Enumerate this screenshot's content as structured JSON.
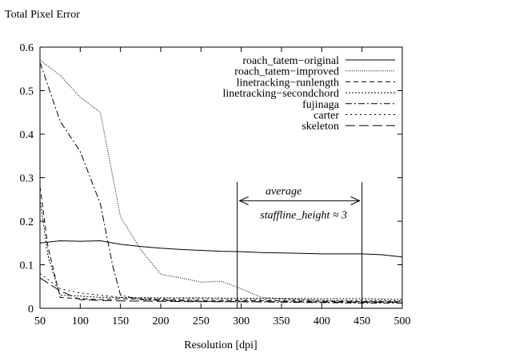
{
  "chart_data": {
    "type": "line",
    "title": "",
    "ylabel": "Total Pixel Error",
    "xlabel": "Resolution [dpi]",
    "xlim": [
      50,
      500
    ],
    "ylim": [
      0,
      0.6
    ],
    "xticks": [
      50,
      100,
      150,
      200,
      250,
      300,
      350,
      400,
      450,
      500
    ],
    "yticks": [
      0,
      0.1,
      0.2,
      0.3,
      0.4,
      0.5,
      0.6
    ],
    "grid": false,
    "legend_position": "top-right",
    "series": [
      {
        "name": "roach_tatem−original",
        "dash": "solid",
        "x": [
          50,
          75,
          100,
          125,
          150,
          175,
          200,
          225,
          250,
          275,
          300,
          325,
          350,
          375,
          400,
          425,
          450,
          475,
          500
        ],
        "y": [
          0.15,
          0.155,
          0.154,
          0.155,
          0.147,
          0.142,
          0.138,
          0.135,
          0.133,
          0.131,
          0.13,
          0.128,
          0.127,
          0.126,
          0.125,
          0.125,
          0.125,
          0.123,
          0.118
        ]
      },
      {
        "name": "roach_tatem−improved",
        "dash": "dotted",
        "x": [
          50,
          75,
          100,
          125,
          150,
          175,
          200,
          225,
          250,
          275,
          300,
          325,
          350,
          375,
          400,
          425,
          450,
          475,
          500
        ],
        "y": [
          0.57,
          0.535,
          0.485,
          0.45,
          0.21,
          0.135,
          0.078,
          0.07,
          0.06,
          0.062,
          0.045,
          0.025,
          0.022,
          0.02,
          0.018,
          0.017,
          0.016,
          0.016,
          0.015
        ]
      },
      {
        "name": "linetracking−runlength",
        "dash": "dashed",
        "x": [
          50,
          60,
          75,
          100,
          125,
          150,
          200,
          250,
          300,
          350,
          400,
          450,
          500
        ],
        "y": [
          0.28,
          0.14,
          0.025,
          0.022,
          0.02,
          0.022,
          0.02,
          0.018,
          0.018,
          0.017,
          0.016,
          0.015,
          0.015
        ]
      },
      {
        "name": "linetracking−secondchord",
        "dash": "densedot",
        "x": [
          50,
          60,
          75,
          100,
          125,
          150,
          200,
          250,
          300,
          350,
          400,
          450,
          500
        ],
        "y": [
          0.25,
          0.12,
          0.03,
          0.028,
          0.025,
          0.025,
          0.024,
          0.024,
          0.023,
          0.023,
          0.022,
          0.022,
          0.02
        ]
      },
      {
        "name": "fujinaga",
        "dash": "dashdot",
        "x": [
          50,
          75,
          100,
          125,
          140,
          150,
          175,
          200,
          250,
          300,
          350,
          400,
          450,
          500
        ],
        "y": [
          0.565,
          0.43,
          0.36,
          0.24,
          0.1,
          0.03,
          0.02,
          0.018,
          0.016,
          0.015,
          0.014,
          0.013,
          0.012,
          0.012
        ]
      },
      {
        "name": "carter",
        "dash": "sparsedot",
        "x": [
          50,
          75,
          100,
          125,
          150,
          200,
          250,
          300,
          350,
          400,
          450,
          500
        ],
        "y": [
          0.08,
          0.045,
          0.035,
          0.03,
          0.025,
          0.022,
          0.022,
          0.02,
          0.02,
          0.018,
          0.018,
          0.017
        ]
      },
      {
        "name": "skeleton",
        "dash": "longdash",
        "x": [
          50,
          75,
          100,
          125,
          150,
          200,
          250,
          300,
          350,
          400,
          450,
          500
        ],
        "y": [
          0.07,
          0.04,
          0.02,
          0.018,
          0.017,
          0.016,
          0.015,
          0.015,
          0.015,
          0.014,
          0.014,
          0.014
        ]
      }
    ],
    "annotations": {
      "vlines": [
        295,
        450
      ],
      "arrow": {
        "x_from": 295,
        "x_to": 450,
        "y": 0.247
      },
      "line1": "average",
      "line2": "staffline_height ≈ 3"
    }
  }
}
